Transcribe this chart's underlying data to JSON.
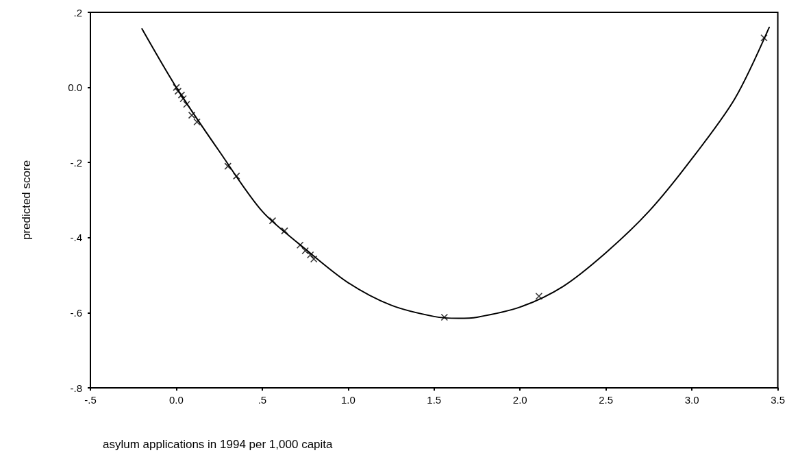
{
  "chart_data": {
    "type": "scatter",
    "xlabel": "asylum applications in 1994 per 1,000 capita",
    "ylabel": "predicted score",
    "marker": "cross",
    "grid": false,
    "xlim": [
      -0.5,
      3.5
    ],
    "xticks": [
      {
        "value": -0.5,
        "label": "-.5"
      },
      {
        "value": 0,
        "label": "0.0"
      },
      {
        "value": 0.5,
        "label": ".5"
      },
      {
        "value": 1,
        "label": "1.0"
      },
      {
        "value": 1.5,
        "label": "1.5"
      },
      {
        "value": 2,
        "label": "2.0"
      },
      {
        "value": 2.5,
        "label": "2.5"
      },
      {
        "value": 3,
        "label": "3.0"
      },
      {
        "value": 3.5,
        "label": "3.5"
      }
    ],
    "ylim": [
      -0.8,
      0.2
    ],
    "yticks": [
      {
        "value": -0.8,
        "label": "-.8"
      },
      {
        "value": -0.6,
        "label": "-.6"
      },
      {
        "value": -0.4,
        "label": "-.4"
      },
      {
        "value": -0.2,
        "label": "-.2"
      },
      {
        "value": 0,
        "label": "0.0"
      },
      {
        "value": 0.2,
        "label": ".2"
      }
    ],
    "series": [
      {
        "type": "line",
        "color": "#000000",
        "marker": "none",
        "line_style": "solid",
        "x": [
          -0.2,
          0,
          0.25,
          0.5,
          0.75,
          1.0,
          1.25,
          1.5,
          1.64,
          1.75,
          2.0,
          2.25,
          2.5,
          2.75,
          3.0,
          3.25,
          3.45
        ],
        "values": [
          0.156,
          0.0,
          -0.17,
          -0.33,
          -0.43,
          -0.52,
          -0.58,
          -0.61,
          -0.615,
          -0.612,
          -0.585,
          -0.53,
          -0.44,
          -0.33,
          -0.19,
          -0.03,
          0.16
        ]
      },
      {
        "type": "scatter",
        "color": "#000000",
        "x": [
          0.0,
          0.01,
          0.03,
          0.04,
          0.06,
          0.09,
          0.12,
          0.3,
          0.35,
          0.56,
          0.63,
          0.72,
          0.75,
          0.78,
          0.8,
          1.56,
          2.11,
          3.42
        ],
        "values": [
          0.0,
          -0.01,
          -0.02,
          -0.03,
          -0.045,
          -0.074,
          -0.092,
          -0.21,
          -0.236,
          -0.355,
          -0.382,
          -0.42,
          -0.435,
          -0.446,
          -0.457,
          -0.612,
          -0.556,
          0.132
        ]
      }
    ]
  }
}
